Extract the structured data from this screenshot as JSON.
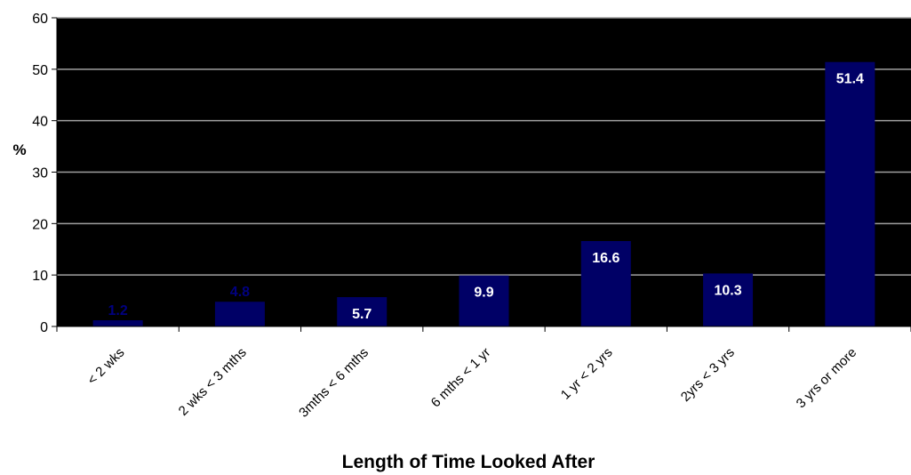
{
  "chart_data": {
    "type": "bar",
    "title": "",
    "xlabel": "Length of Time Looked After",
    "ylabel": "%",
    "ylim": [
      0,
      60
    ],
    "yticks": [
      0,
      10,
      20,
      30,
      40,
      50,
      60
    ],
    "grid": true,
    "categories": [
      "< 2 wks",
      "2 wks < 3 mths",
      "3mths < 6 mths",
      "6 mths < 1 yr",
      "1 yr < 2 yrs",
      "2yrs < 3 yrs",
      "3 yrs or more"
    ],
    "values": [
      1.2,
      4.8,
      5.7,
      9.9,
      16.6,
      10.3,
      51.4
    ],
    "data_labels": [
      "1.2",
      "4.8",
      "5.7",
      "9.9",
      "16.6",
      "10.3",
      "51.4"
    ],
    "colors": {
      "plot_background": "#000000",
      "bar": "#000066",
      "gridline": "#a0a0a0",
      "label_inside": "#ffffff",
      "label_outside": "#000080"
    }
  }
}
